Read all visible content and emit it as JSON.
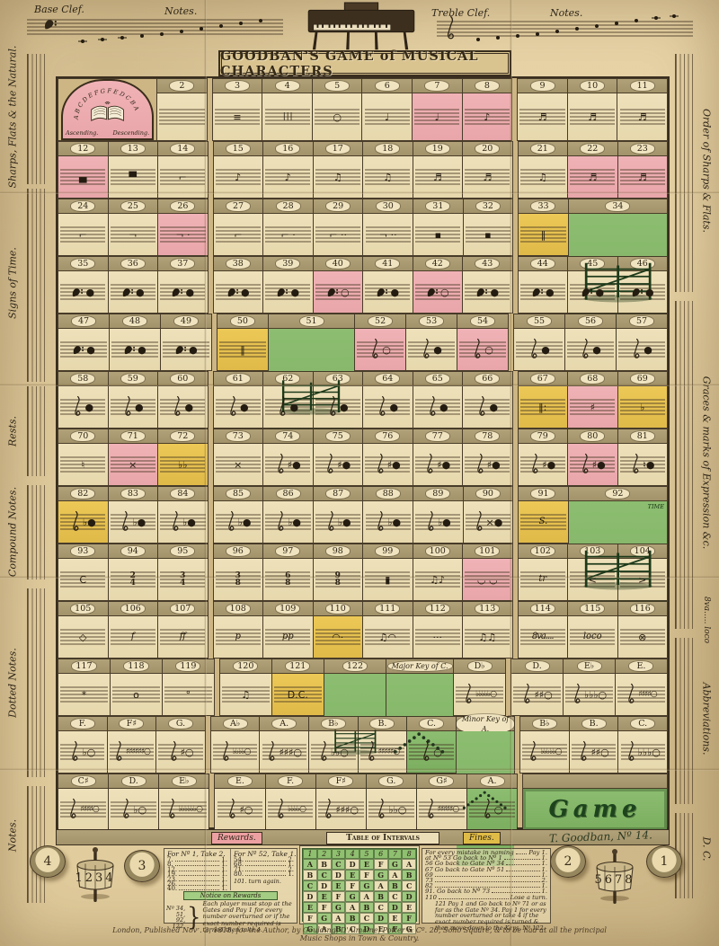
{
  "title": "GOODBAN'S GAME of MUSICAL CHARACTERS",
  "top": {
    "base_clef": "Base Clef.",
    "notes_left": "Notes.",
    "treble_clef": "Treble Clef.",
    "notes_right": "Notes."
  },
  "sides": {
    "left": [
      "Sharps, Flats & the Natural.",
      "Signs of Time.",
      "Rests.",
      "Compound Notes.",
      "Dotted Notes.",
      "Notes."
    ],
    "right": [
      "Order of Sharps & Flats.",
      "Graces & marks of Expression &c.",
      "8va..... loco",
      "Abbreviations.",
      "D. C."
    ]
  },
  "arch": {
    "letters": "A B C D E F G F E D C B A",
    "ascending": "Ascending.",
    "descending": "Descending."
  },
  "gate_flag": "TIME",
  "board": {
    "rows": [
      {
        "cells": [
          {
            "num": "",
            "type": "arch",
            "color": "pink",
            "w": 2
          },
          {
            "num": "2",
            "glyph": ""
          },
          {
            "num": "3",
            "glyph": "≡",
            "brk": 1
          },
          {
            "num": "4",
            "glyph": "| | |"
          },
          {
            "num": "5",
            "glyph": "○"
          },
          {
            "num": "6",
            "glyph": "♩"
          },
          {
            "num": "7",
            "glyph": "♩",
            "color": "pink"
          },
          {
            "num": "8",
            "glyph": "♪",
            "color": "pink"
          },
          {
            "num": "9",
            "glyph": "♬",
            "brk": 1
          },
          {
            "num": "10",
            "glyph": "♬"
          },
          {
            "num": "11",
            "glyph": "♬"
          }
        ]
      },
      {
        "cells": [
          {
            "num": "12",
            "glyph": "▄",
            "color": "pink"
          },
          {
            "num": "13",
            "glyph": "▀"
          },
          {
            "num": "14",
            "glyph": "⌐"
          },
          {
            "num": "15",
            "glyph": "♪",
            "brk": 1
          },
          {
            "num": "16",
            "glyph": "♪"
          },
          {
            "num": "17",
            "glyph": "♫"
          },
          {
            "num": "18",
            "glyph": "♫"
          },
          {
            "num": "19",
            "glyph": "♬"
          },
          {
            "num": "20",
            "glyph": "♬"
          },
          {
            "num": "21",
            "glyph": "♫",
            "brk": 1
          },
          {
            "num": "22",
            "glyph": "♬",
            "color": "pink"
          },
          {
            "num": "23",
            "glyph": "♬",
            "color": "pink"
          }
        ]
      },
      {
        "cells": [
          {
            "num": "24",
            "glyph": "⌐"
          },
          {
            "num": "25",
            "glyph": "¬"
          },
          {
            "num": "26",
            "glyph": "¬ ·",
            "color": "pink"
          },
          {
            "num": "27",
            "glyph": "⌐",
            "brk": 1
          },
          {
            "num": "28",
            "glyph": "⌐ ·"
          },
          {
            "num": "29",
            "glyph": "⌐ ··"
          },
          {
            "num": "30",
            "glyph": "¬ ··"
          },
          {
            "num": "31",
            "glyph": "▪"
          },
          {
            "num": "32",
            "glyph": "▪"
          },
          {
            "num": "33",
            "glyph": "‖",
            "color": "yellow",
            "brk": 1
          },
          {
            "num": "34",
            "type": "gate",
            "color": "green",
            "w": 2
          }
        ]
      },
      {
        "cells": [
          {
            "num": "35",
            "clef": "b",
            "glyph": "●"
          },
          {
            "num": "36",
            "clef": "b",
            "glyph": "●"
          },
          {
            "num": "37",
            "clef": "b",
            "glyph": "●"
          },
          {
            "num": "38",
            "clef": "b",
            "glyph": "●",
            "brk": 1
          },
          {
            "num": "39",
            "clef": "b",
            "glyph": "●"
          },
          {
            "num": "40",
            "clef": "b",
            "glyph": "○",
            "color": "pink"
          },
          {
            "num": "41",
            "clef": "b",
            "glyph": "●"
          },
          {
            "num": "42",
            "clef": "b",
            "glyph": "○",
            "color": "pink"
          },
          {
            "num": "43",
            "clef": "b",
            "glyph": "●"
          },
          {
            "num": "44",
            "clef": "b",
            "glyph": "●",
            "brk": 1
          },
          {
            "num": "45",
            "clef": "b",
            "glyph": "●"
          },
          {
            "num": "46",
            "clef": "b",
            "glyph": "●"
          }
        ]
      },
      {
        "cells": [
          {
            "num": "47",
            "clef": "b",
            "glyph": "●"
          },
          {
            "num": "48",
            "clef": "b",
            "glyph": "●"
          },
          {
            "num": "49",
            "clef": "b",
            "glyph": "●"
          },
          {
            "num": "50",
            "glyph": "‖",
            "color": "yellow",
            "brk": 1
          },
          {
            "num": "51",
            "type": "gate",
            "color": "green",
            "w": 1.7
          },
          {
            "num": "52",
            "clef": "t",
            "glyph": "○",
            "color": "pink"
          },
          {
            "num": "53",
            "clef": "t",
            "glyph": "●"
          },
          {
            "num": "54",
            "clef": "t",
            "glyph": "○",
            "color": "pink"
          },
          {
            "num": "55",
            "clef": "t",
            "glyph": "●",
            "brk": 1
          },
          {
            "num": "56",
            "clef": "t",
            "glyph": "●"
          },
          {
            "num": "57",
            "clef": "t",
            "glyph": "●"
          }
        ]
      },
      {
        "cells": [
          {
            "num": "58",
            "clef": "t",
            "glyph": "●"
          },
          {
            "num": "59",
            "clef": "t",
            "glyph": "●"
          },
          {
            "num": "60",
            "clef": "t",
            "glyph": "●"
          },
          {
            "num": "61",
            "clef": "t",
            "glyph": "●",
            "brk": 1
          },
          {
            "num": "62",
            "clef": "t",
            "glyph": "●"
          },
          {
            "num": "63",
            "clef": "t",
            "glyph": "●"
          },
          {
            "num": "64",
            "clef": "t",
            "glyph": "●"
          },
          {
            "num": "65",
            "clef": "t",
            "glyph": "●"
          },
          {
            "num": "66",
            "clef": "t",
            "glyph": "●"
          },
          {
            "num": "67",
            "glyph": "‖:",
            "color": "yellow",
            "brk": 1
          },
          {
            "num": "68",
            "glyph": "♯",
            "color": "pink"
          },
          {
            "num": "69",
            "glyph": "♭",
            "color": "yellow"
          }
        ]
      },
      {
        "cells": [
          {
            "num": "70",
            "glyph": "♮"
          },
          {
            "num": "71",
            "glyph": "×",
            "color": "pink"
          },
          {
            "num": "72",
            "glyph": "♭♭",
            "color": "yellow"
          },
          {
            "num": "73",
            "glyph": "×",
            "brk": 1
          },
          {
            "num": "74",
            "clef": "t",
            "glyph": "♯●"
          },
          {
            "num": "75",
            "clef": "t",
            "glyph": "♯●"
          },
          {
            "num": "76",
            "clef": "t",
            "glyph": "♯●"
          },
          {
            "num": "77",
            "clef": "t",
            "glyph": "♯●"
          },
          {
            "num": "78",
            "clef": "t",
            "glyph": "♯●"
          },
          {
            "num": "79",
            "clef": "t",
            "glyph": "♯●",
            "brk": 1
          },
          {
            "num": "80",
            "clef": "t",
            "glyph": "♯●",
            "color": "pink"
          },
          {
            "num": "81",
            "clef": "t",
            "glyph": "♮●"
          }
        ]
      },
      {
        "cells": [
          {
            "num": "82",
            "clef": "t",
            "glyph": "♭●",
            "color": "yellow"
          },
          {
            "num": "83",
            "clef": "t",
            "glyph": "♭●"
          },
          {
            "num": "84",
            "clef": "t",
            "glyph": "♭●"
          },
          {
            "num": "85",
            "clef": "t",
            "glyph": "♭●",
            "brk": 1
          },
          {
            "num": "86",
            "clef": "t",
            "glyph": "♭●"
          },
          {
            "num": "87",
            "clef": "t",
            "glyph": "♭●"
          },
          {
            "num": "88",
            "clef": "t",
            "glyph": "♭●"
          },
          {
            "num": "89",
            "clef": "t",
            "glyph": "♭●"
          },
          {
            "num": "90",
            "clef": "t",
            "glyph": "×●"
          },
          {
            "num": "91",
            "glyph": "S.",
            "it": 1,
            "color": "yellow",
            "brk": 1
          },
          {
            "num": "92",
            "type": "gate",
            "color": "green",
            "w": 2,
            "extra": "TIME"
          }
        ]
      },
      {
        "cells": [
          {
            "num": "93",
            "glyph": "C"
          },
          {
            "num": "94",
            "glyph": "2/4"
          },
          {
            "num": "95",
            "glyph": "3/4"
          },
          {
            "num": "96",
            "glyph": "3/8",
            "brk": 1
          },
          {
            "num": "97",
            "glyph": "6/8"
          },
          {
            "num": "98",
            "glyph": "9/8"
          },
          {
            "num": "99",
            "glyph": "▮"
          },
          {
            "num": "100",
            "glyph": "♫♪"
          },
          {
            "num": "101",
            "glyph": "◡ ◡",
            "color": "pink"
          },
          {
            "num": "102",
            "glyph": "tr",
            "it": 1,
            "brk": 1
          },
          {
            "num": "103",
            "glyph": "<"
          },
          {
            "num": "104",
            "glyph": ">"
          }
        ]
      },
      {
        "cells": [
          {
            "num": "105",
            "glyph": "◇"
          },
          {
            "num": "106",
            "glyph": "f",
            "it": 1
          },
          {
            "num": "107",
            "glyph": "ff",
            "it": 1
          },
          {
            "num": "108",
            "glyph": "p",
            "it": 1,
            "brk": 1
          },
          {
            "num": "109",
            "glyph": "pp",
            "it": 1
          },
          {
            "num": "110",
            "glyph": "◠·",
            "color": "yellow"
          },
          {
            "num": "111",
            "glyph": "♫◠"
          },
          {
            "num": "112",
            "glyph": "···"
          },
          {
            "num": "113",
            "glyph": "♫♫"
          },
          {
            "num": "114",
            "glyph": "8va....",
            "it": 1,
            "brk": 1
          },
          {
            "num": "115",
            "glyph": "loco",
            "it": 1
          },
          {
            "num": "116",
            "glyph": "⊗"
          }
        ]
      },
      {
        "cells": [
          {
            "num": "117",
            "glyph": "*"
          },
          {
            "num": "118",
            "glyph": "o"
          },
          {
            "num": "119",
            "glyph": "°"
          },
          {
            "num": "120",
            "glyph": "♫",
            "brk": 1
          },
          {
            "num": "121",
            "glyph": "D.C.",
            "color": "yellow"
          },
          {
            "num": "122",
            "type": "gate",
            "color": "green",
            "w": 1.2
          },
          {
            "num": "Major Key of C.",
            "type": "scale",
            "color": "green",
            "w": 1.3
          },
          {
            "num": "D♭",
            "clef": "t",
            "glyph": "♭♭♭♭♭○"
          },
          {
            "num": "D.",
            "clef": "t",
            "glyph": "♯♯○",
            "brk": 1
          },
          {
            "num": "E♭",
            "clef": "t",
            "glyph": "♭♭♭○"
          },
          {
            "num": "E.",
            "clef": "t",
            "glyph": "♯♯♯♯○"
          }
        ]
      },
      {
        "cells": [
          {
            "num": "F.",
            "clef": "t",
            "glyph": "♭○"
          },
          {
            "num": "F♯",
            "clef": "t",
            "glyph": "♯♯♯♯♯♯○"
          },
          {
            "num": "G.",
            "clef": "t",
            "glyph": "♯○"
          },
          {
            "num": "A♭",
            "clef": "t",
            "glyph": "♭♭♭♭○",
            "brk": 1
          },
          {
            "num": "A.",
            "clef": "t",
            "glyph": "♯♯♯○"
          },
          {
            "num": "B♭",
            "clef": "t",
            "glyph": "♭♭○"
          },
          {
            "num": "B.",
            "clef": "t",
            "glyph": "♯♯♯♯♯○"
          },
          {
            "num": "C.",
            "clef": "t",
            "glyph": "○",
            "color": "green"
          },
          {
            "num": "Minor Key of A.",
            "type": "scale",
            "color": "green",
            "w": 1.2
          },
          {
            "num": "B♭",
            "clef": "t",
            "glyph": "♭♭♭♭♭○",
            "brk": 1
          },
          {
            "num": "B.",
            "clef": "t",
            "glyph": "♯♯○"
          },
          {
            "num": "C.",
            "clef": "t",
            "glyph": "♭♭♭○"
          }
        ]
      },
      {
        "cells": [
          {
            "num": "C♯",
            "clef": "t",
            "glyph": "♯♯♯♯○"
          },
          {
            "num": "D.",
            "clef": "t",
            "glyph": "♭○"
          },
          {
            "num": "E♭",
            "clef": "t",
            "glyph": "♭♭♭♭♭♭○"
          },
          {
            "num": "E.",
            "clef": "t",
            "glyph": "♯○",
            "brk": 1
          },
          {
            "num": "F.",
            "clef": "t",
            "glyph": "♭♭♭♭○"
          },
          {
            "num": "F♯",
            "clef": "t",
            "glyph": "♯♯♯○"
          },
          {
            "num": "G.",
            "clef": "t",
            "glyph": "♭♭○"
          },
          {
            "num": "G♯",
            "clef": "t",
            "glyph": "♯♯♯♯♯○"
          },
          {
            "num": "A.",
            "clef": "t",
            "glyph": "○",
            "color": "green"
          },
          {
            "num": "",
            "type": "game",
            "glyph": "Game",
            "color": "green",
            "w": 2.9,
            "brk": 1
          }
        ]
      }
    ]
  },
  "rewards": {
    "header": "Rewards.",
    "col1_title": "For Nº 1, Take 2.",
    "col1": [
      [
        "7.",
        "1."
      ],
      [
        "8.",
        "1."
      ],
      [
        "12.",
        "1."
      ],
      [
        "19.",
        "1."
      ],
      [
        "23.",
        "1."
      ],
      [
        "26.",
        "1."
      ],
      [
        "40.",
        "1."
      ],
      [
        "42.",
        "1."
      ]
    ],
    "col2_title": "For Nº 52, Take 1.",
    "col2": [
      [
        "54.",
        "2."
      ],
      [
        "68.",
        "1."
      ],
      [
        "71.",
        "2."
      ],
      [
        "80.",
        "1."
      ]
    ],
    "col2_last": "101. turn again.",
    "notice_title": "Notice on Rewards",
    "gate_numbers": [
      "Nº 34,",
      "51,",
      "92,",
      "122,"
    ],
    "notice_text": "Each player must stop at the Gates and Pay 1 for every number overturned or if the exact number required is turned then take 4."
  },
  "fines": {
    "header": "Fines.",
    "rows": [
      [
        "For every mistake in naming",
        "Pay 1."
      ],
      [
        "at Nº 53 Go back to Nº 1",
        "1."
      ],
      [
        "56 Go back to Gate Nº 34",
        "1."
      ],
      [
        "67 Go back to Gate Nº 51",
        "1."
      ],
      [
        "69",
        "1."
      ],
      [
        "73",
        "2."
      ],
      [
        "82",
        "1."
      ],
      [
        "91. Go back to Nº 73",
        "1."
      ],
      [
        "110",
        "Lose a turn."
      ]
    ],
    "para": "121 Pay 1 and Go back to Nº 71 or as far as the Gate Nº 34. Pay 1 for every number overturned or take 4 if the exact number required is turned & then move down to the Keys, Nº 122."
  },
  "intervals": {
    "title": "Table of Intervals",
    "header": [
      "1",
      "2",
      "3",
      "4",
      "5",
      "6",
      "7",
      "8"
    ],
    "rows": [
      [
        "A",
        "B",
        "C",
        "D",
        "E",
        "F",
        "G",
        "A"
      ],
      [
        "B",
        "C",
        "D",
        "E",
        "F",
        "G",
        "A",
        "B"
      ],
      [
        "C",
        "D",
        "E",
        "F",
        "G",
        "A",
        "B",
        "C"
      ],
      [
        "D",
        "E",
        "F",
        "G",
        "A",
        "B",
        "C",
        "D"
      ],
      [
        "E",
        "F",
        "G",
        "A",
        "B",
        "C",
        "D",
        "E"
      ],
      [
        "F",
        "G",
        "A",
        "B",
        "C",
        "D",
        "E",
        "F"
      ],
      [
        "G",
        "A",
        "B",
        "C",
        "D",
        "E",
        "F",
        "G"
      ]
    ]
  },
  "imprint": "London, Published Novʳ. 2, 1818, for the Author, by Goulding, D'Almaine, Potter & Cº. 20, Soho Square, & to be had at all the principal Music Shops in Town & Country.",
  "signature": "T. Goodban, Nº 14.",
  "pieces": {
    "discs": [
      "4",
      "3",
      "2",
      "1"
    ],
    "teetotum_left": "1234",
    "teetotum_right": "5678"
  }
}
